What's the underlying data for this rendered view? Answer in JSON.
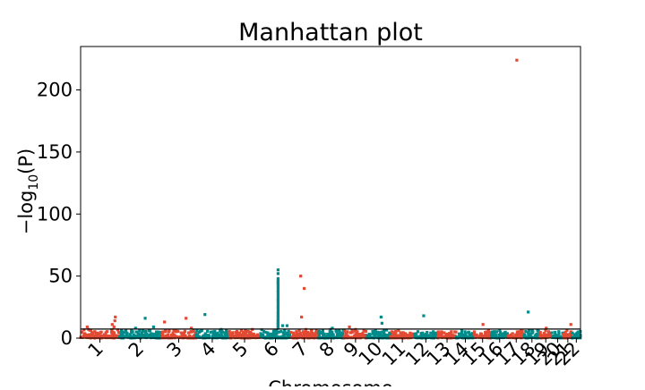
{
  "chart_data": {
    "type": "scatter",
    "subtype": "manhattan",
    "title": "Manhattan plot",
    "xlabel": "Chromosome",
    "ylabel_parts": [
      "−log",
      "10",
      "(P)"
    ],
    "ylim": [
      0,
      235
    ],
    "y_ticks": [
      0,
      50,
      100,
      150,
      200
    ],
    "significance_threshold": 7.3,
    "grid": false,
    "legend": "none",
    "colors": {
      "odd": "#e24a33",
      "even": "#008b8b",
      "threshold": "#000000"
    },
    "chromosomes": [
      {
        "label": "1",
        "start": 0,
        "end": 8.78,
        "background_max": 6.5,
        "peaks": [
          [
            1.5,
            9
          ],
          [
            1.8,
            7
          ],
          [
            7.2,
            11
          ],
          [
            7.6,
            9
          ],
          [
            7.8,
            14
          ],
          [
            7.9,
            17
          ]
        ]
      },
      {
        "label": "2",
        "start": 8.78,
        "end": 18.43,
        "background_max": 6.0,
        "peaks": [
          [
            12.5,
            8
          ],
          [
            14.7,
            16
          ],
          [
            16.6,
            9
          ]
        ]
      },
      {
        "label": "3",
        "start": 18.43,
        "end": 26.23,
        "background_max": 6.0,
        "peaks": [
          [
            19.1,
            13
          ],
          [
            24.0,
            16
          ],
          [
            25.2,
            8
          ]
        ]
      },
      {
        "label": "4",
        "start": 26.23,
        "end": 33.7,
        "background_max": 5.5,
        "peaks": [
          [
            28.3,
            19
          ],
          [
            32.0,
            7
          ]
        ]
      },
      {
        "label": "5",
        "start": 33.7,
        "end": 40.94,
        "background_max": 5.5,
        "peaks": [
          [
            39.1,
            7
          ]
        ]
      },
      {
        "label": "6",
        "start": 40.94,
        "end": 47.76,
        "background_max": 6.0,
        "peaks": [
          [
            46.0,
            10
          ],
          [
            47.0,
            10
          ]
        ]
      },
      {
        "label": "7",
        "start": 47.76,
        "end": 54.13,
        "background_max": 6.0,
        "peaks": [
          [
            50.1,
            50
          ],
          [
            50.3,
            17
          ],
          [
            50.9,
            40
          ],
          [
            51.3,
            7
          ]
        ]
      },
      {
        "label": "8",
        "start": 54.13,
        "end": 59.95,
        "background_max": 6.0,
        "peaks": [
          [
            56.9,
            7
          ],
          [
            57.3,
            8
          ]
        ]
      },
      {
        "label": "9",
        "start": 59.95,
        "end": 65.22,
        "background_max": 5.5,
        "peaks": [
          [
            61.2,
            9
          ],
          [
            62.6,
            7
          ]
        ]
      },
      {
        "label": "10",
        "start": 65.22,
        "end": 70.57,
        "background_max": 6.0,
        "peaks": [
          [
            68.4,
            17
          ],
          [
            68.6,
            12
          ]
        ]
      },
      {
        "label": "11",
        "start": 70.57,
        "end": 75.92,
        "background_max": 5.5,
        "peaks": []
      },
      {
        "label": "12",
        "start": 75.92,
        "end": 81.25,
        "background_max": 5.5,
        "peaks": [
          [
            78.1,
            18
          ]
        ]
      },
      {
        "label": "13",
        "start": 81.25,
        "end": 85.59,
        "background_max": 5.0,
        "peaks": []
      },
      {
        "label": "14",
        "start": 85.59,
        "end": 89.59,
        "background_max": 5.0,
        "peaks": []
      },
      {
        "label": "15",
        "start": 89.59,
        "end": 93.44,
        "background_max": 5.5,
        "peaks": [
          [
            91.6,
            11
          ]
        ]
      },
      {
        "label": "16",
        "start": 93.44,
        "end": 97.35,
        "background_max": 5.0,
        "peaks": [
          [
            95.4,
            6
          ]
        ]
      },
      {
        "label": "17",
        "start": 97.35,
        "end": 100.99,
        "background_max": 6.0,
        "peaks": [
          [
            99.3,
            224
          ]
        ]
      },
      {
        "label": "18",
        "start": 100.99,
        "end": 104.5,
        "background_max": 6.0,
        "peaks": [
          [
            101.9,
            21
          ]
        ]
      },
      {
        "label": "19",
        "start": 104.5,
        "end": 107.29,
        "background_max": 5.5,
        "peaks": [
          [
            106.0,
            8
          ]
        ]
      },
      {
        "label": "20",
        "start": 107.29,
        "end": 109.93,
        "background_max": 5.0,
        "peaks": []
      },
      {
        "label": "21",
        "start": 109.93,
        "end": 111.9,
        "background_max": 6.0,
        "peaks": [
          [
            111.6,
            11
          ]
        ]
      },
      {
        "label": "22",
        "start": 111.9,
        "end": 113.8,
        "background_max": 5.0,
        "peaks": []
      }
    ],
    "column_peaks": [
      {
        "chromosome": "6",
        "x": 44.95,
        "values": [
          55,
          52,
          48,
          46,
          45,
          44,
          42,
          40,
          38,
          37,
          35,
          33,
          31,
          30,
          28,
          26,
          25,
          23,
          21,
          20,
          18,
          17,
          15,
          14,
          13,
          12,
          11,
          10,
          9,
          8
        ]
      }
    ]
  }
}
